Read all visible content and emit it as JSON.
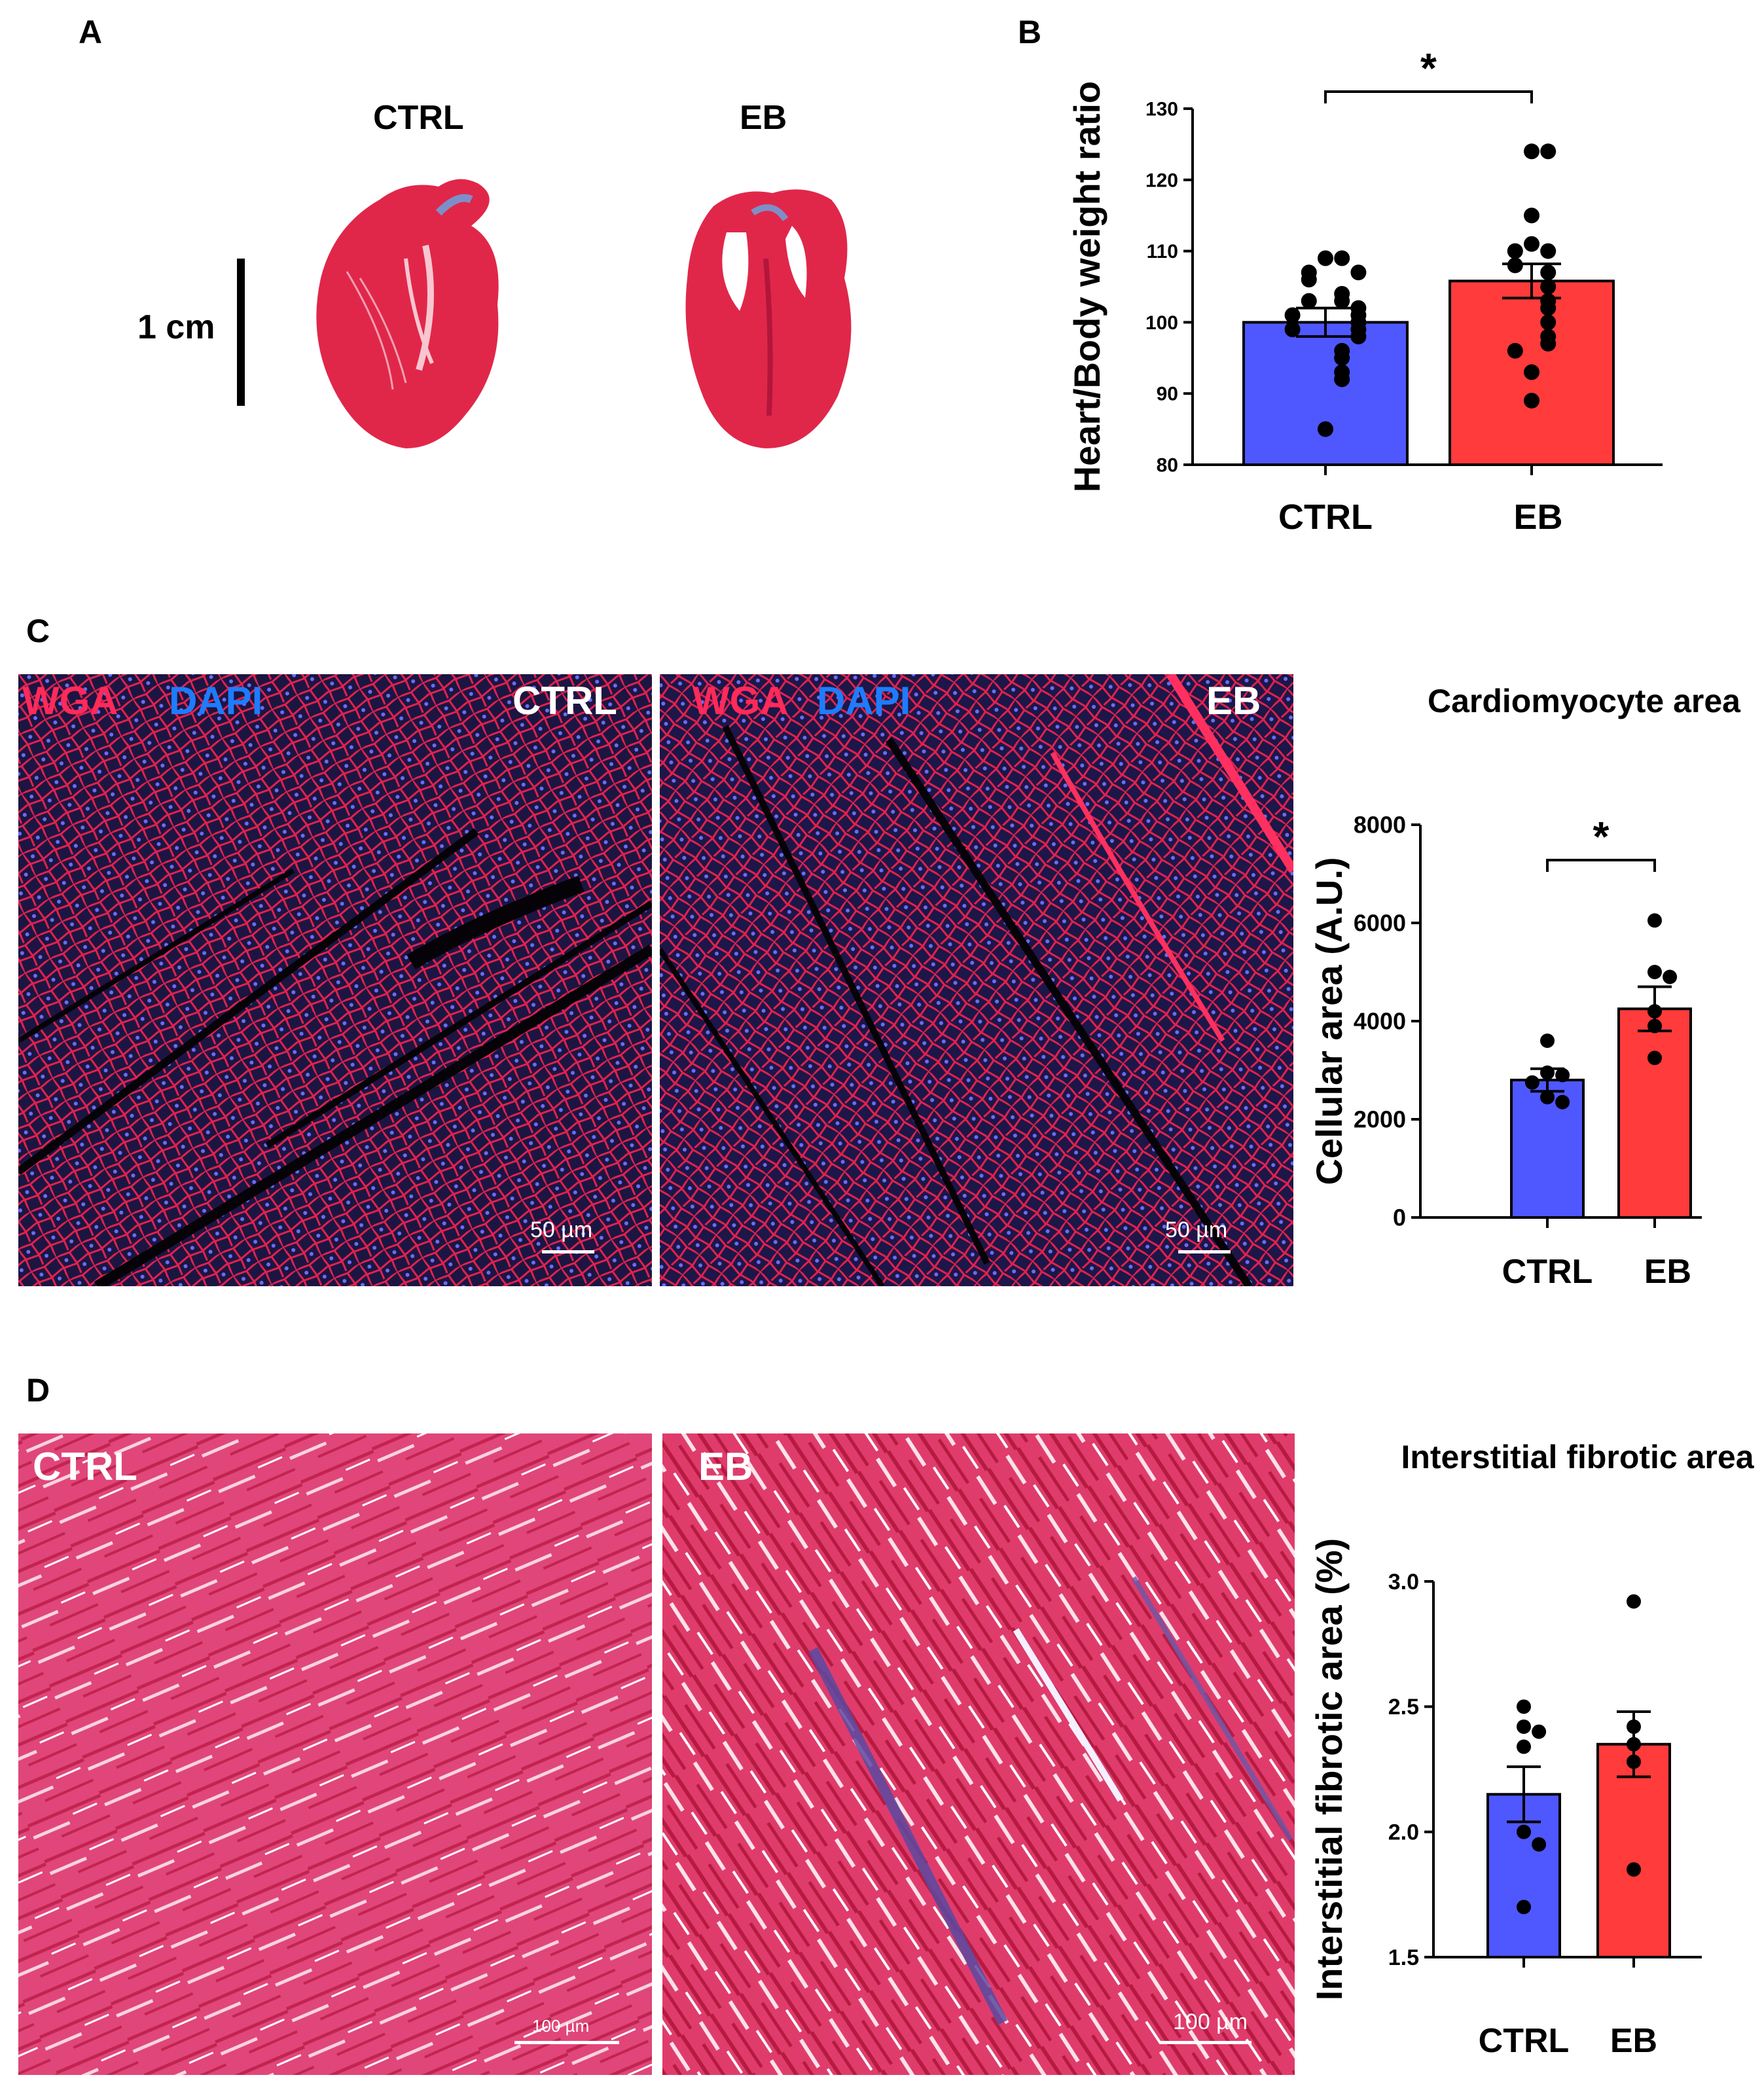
{
  "panels": {
    "A": {
      "letter": "A",
      "ctrl_label": "CTRL",
      "eb_label": "EB",
      "scale_label": "1 cm",
      "colors": {
        "tissue": "#e0274a",
        "fibrous": "#7e8fc8"
      }
    },
    "B": {
      "letter": "B",
      "sig": "*"
    },
    "C": {
      "letter": "C",
      "stain_red": "WGA",
      "stain_blue": "DAPI",
      "ctrl_label": "CTRL",
      "eb_label": "EB",
      "scale_ctrl": "50 µm",
      "scale_eb": "50 µm",
      "chart_title": "Cardiomyocyte area",
      "sig": "*",
      "colors": {
        "red": "#ff2a5a",
        "blue": "#1e7cff",
        "bg": "#1c1542"
      }
    },
    "D": {
      "letter": "D",
      "ctrl_label": "CTRL",
      "eb_label": "EB",
      "scale_ctrl": "100 µm",
      "scale_eb": "100 µm",
      "chart_title": "Interstitial fibrotic area",
      "colors": {
        "bg": "#e04679",
        "streak": "#c2244f"
      }
    }
  },
  "chart_data": [
    {
      "panel": "B",
      "type": "bar",
      "categories": [
        "CTRL",
        "EB"
      ],
      "values": [
        100,
        105.8
      ],
      "sem": [
        2.0,
        2.4
      ],
      "points": [
        [
          109,
          109,
          107,
          107,
          106,
          104,
          103,
          103,
          102,
          101,
          101,
          100,
          99,
          99,
          98,
          96,
          95,
          93,
          92,
          85
        ],
        [
          124,
          124,
          115,
          111,
          110,
          110,
          108,
          107,
          105,
          103,
          102,
          100,
          98,
          97,
          96,
          93,
          89
        ]
      ],
      "colors": [
        "#4f57ff",
        "#ff3b3b"
      ],
      "ylabel": "Heart/Body weight ratio",
      "ylim": [
        80,
        130
      ],
      "yticks": [
        80,
        90,
        100,
        110,
        120,
        130
      ],
      "significance": "*"
    },
    {
      "panel": "C",
      "type": "bar",
      "title": "Cardiomyocyte area",
      "categories": [
        "CTRL",
        "EB"
      ],
      "values": [
        2800,
        4250
      ],
      "sem": [
        230,
        450
      ],
      "points": [
        [
          3600,
          2950,
          2900,
          2750,
          2450,
          2350
        ],
        [
          6050,
          5000,
          4900,
          4200,
          3900,
          3250
        ]
      ],
      "colors": [
        "#4f57ff",
        "#ff3b3b"
      ],
      "ylabel": "Cellular area (A.U.)",
      "ylim": [
        0,
        8000
      ],
      "yticks": [
        0,
        2000,
        4000,
        6000,
        8000
      ],
      "significance": "*"
    },
    {
      "panel": "D",
      "type": "bar",
      "title": "Interstitial fibrotic area",
      "categories": [
        "CTRL",
        "EB"
      ],
      "values": [
        2.15,
        2.35
      ],
      "sem": [
        0.11,
        0.13
      ],
      "points": [
        [
          2.5,
          2.42,
          2.4,
          2.34,
          2.0,
          1.95,
          1.7
        ],
        [
          2.92,
          2.42,
          2.35,
          2.28,
          1.85
        ]
      ],
      "colors": [
        "#4f57ff",
        "#ff3b3b"
      ],
      "ylabel": "Interstitial fibrotic area (%)",
      "ylim": [
        1.5,
        3.0
      ],
      "yticks": [
        "1.5",
        "2.0",
        "2.5",
        "3.0"
      ]
    }
  ]
}
